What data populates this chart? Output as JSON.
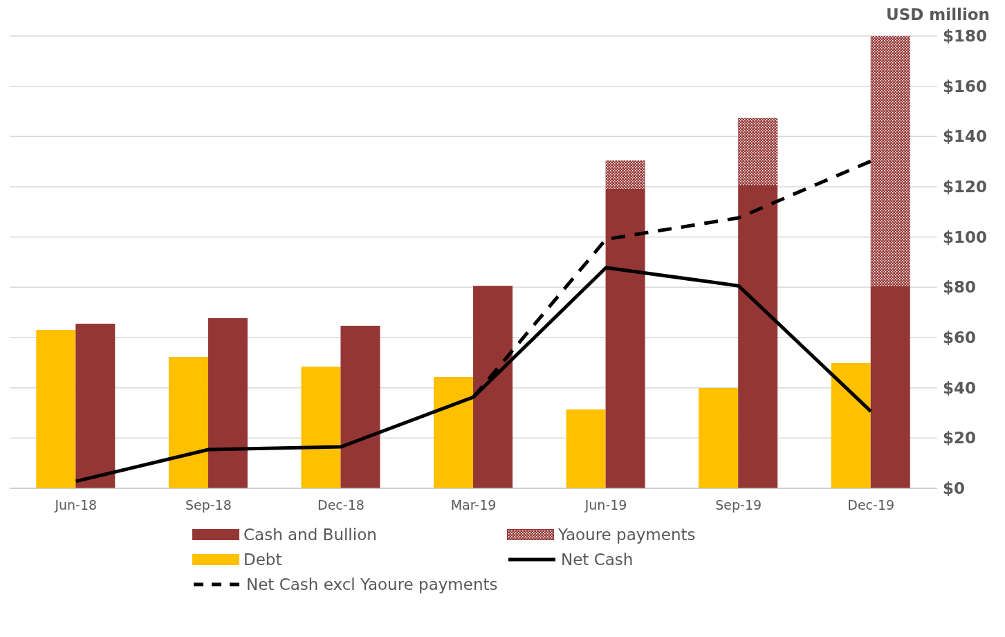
{
  "chart_data": {
    "type": "bar",
    "ylabel": "USD million",
    "categories": [
      "Jun-18",
      "Sep-18",
      "Dec-18",
      "Mar-19",
      "Jun-19",
      "Sep-19",
      "Dec-19"
    ],
    "series": [
      {
        "name": "Debt",
        "color": "#ffc000",
        "values": [
          63,
          52.3,
          48.4,
          44.3,
          31.4,
          39.9,
          49.8
        ]
      },
      {
        "name": "Cash and Bullion",
        "color": "#943634",
        "values": [
          65.5,
          67.7,
          64.7,
          80.6,
          119.2,
          120.6,
          80.4
        ]
      },
      {
        "name": "Yaoure payments",
        "color": "#943634",
        "values": [
          null,
          null,
          null,
          null,
          11.3,
          26.7,
          99.6
        ],
        "base": [
          null,
          null,
          null,
          null,
          119.2,
          120.6,
          80.4
        ]
      },
      {
        "name": "Net Cash",
        "type": "line",
        "line_style": "solid",
        "color": "#000000",
        "values": [
          2.8,
          15.4,
          16.5,
          36.3,
          87.8,
          80.6,
          30.6
        ]
      },
      {
        "name": "Net Cash excl Yaoure payments",
        "type": "line",
        "line_style": "dashed",
        "color": "#000000",
        "values": [
          null,
          null,
          null,
          36.3,
          99.1,
          107.6,
          130.2
        ]
      }
    ],
    "ylim": [
      0,
      180
    ],
    "yticks": [
      {
        "value": 0,
        "label": "$0"
      },
      {
        "value": 20,
        "label": "$20"
      },
      {
        "value": 40,
        "label": "$40"
      },
      {
        "value": 60,
        "label": "$60"
      },
      {
        "value": 80,
        "label": "$80"
      },
      {
        "value": 100,
        "label": "$100"
      },
      {
        "value": 120,
        "label": "$120"
      },
      {
        "value": 140,
        "label": "$140"
      },
      {
        "value": 160,
        "label": "$160"
      },
      {
        "value": 180,
        "label": "$180"
      }
    ],
    "grid": "y",
    "legend": "bottom",
    "marker": "none"
  }
}
